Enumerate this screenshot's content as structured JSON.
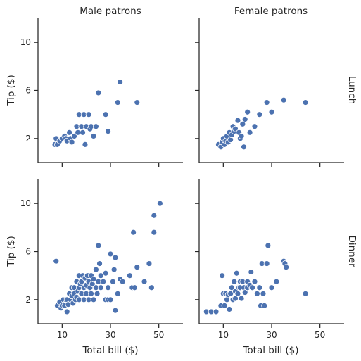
{
  "chart_data": {
    "type": "scatter",
    "xlabel": "Total bill ($)",
    "ylabel": "Tip ($)",
    "xlim": [
      0,
      60
    ],
    "ylim": [
      0,
      12
    ],
    "xticks": [
      10,
      30,
      50
    ],
    "yticks": [
      2,
      6,
      10
    ],
    "col_titles": [
      "Male patrons",
      "Female patrons"
    ],
    "row_titles": [
      "Lunch",
      "Dinner"
    ],
    "point_color": "#4c72b0",
    "grid": false,
    "facets": [
      {
        "row": "Lunch",
        "col": "Male patrons",
        "points": [
          [
            7,
            1.5
          ],
          [
            7.5,
            2
          ],
          [
            8,
            1.5
          ],
          [
            9,
            1.8
          ],
          [
            10,
            2
          ],
          [
            11,
            2.2
          ],
          [
            11.5,
            2
          ],
          [
            12,
            1.8
          ],
          [
            13,
            2.5
          ],
          [
            13.5,
            2
          ],
          [
            14,
            1.7
          ],
          [
            15,
            2.2
          ],
          [
            16,
            3
          ],
          [
            16.5,
            2.5
          ],
          [
            17,
            4
          ],
          [
            18,
            3
          ],
          [
            18.5,
            2.5
          ],
          [
            19,
            4
          ],
          [
            19.5,
            1.5
          ],
          [
            20,
            3
          ],
          [
            21,
            4
          ],
          [
            21.5,
            2.8
          ],
          [
            22,
            3
          ],
          [
            23,
            2.2
          ],
          [
            24,
            3
          ],
          [
            25,
            5.8
          ],
          [
            28,
            4
          ],
          [
            29,
            2.6
          ],
          [
            33,
            5
          ],
          [
            34,
            6.7
          ],
          [
            41,
            5
          ]
        ]
      },
      {
        "row": "Lunch",
        "col": "Female patrons",
        "points": [
          [
            8,
            1.5
          ],
          [
            9,
            1.3
          ],
          [
            9.5,
            1.7
          ],
          [
            10,
            2
          ],
          [
            10.5,
            1.5
          ],
          [
            11,
            1.8
          ],
          [
            11.5,
            2.2
          ],
          [
            12,
            1.7
          ],
          [
            12.5,
            2.5
          ],
          [
            13,
            1.9
          ],
          [
            13.5,
            2.3
          ],
          [
            14,
            3
          ],
          [
            14.5,
            2.6
          ],
          [
            15,
            2.8
          ],
          [
            16,
            3.5
          ],
          [
            16.5,
            2.5
          ],
          [
            17,
            2
          ],
          [
            17.5,
            2.2
          ],
          [
            18,
            3.2
          ],
          [
            18.5,
            1.3
          ],
          [
            19,
            3.6
          ],
          [
            20,
            4.2
          ],
          [
            21,
            2.5
          ],
          [
            23,
            3
          ],
          [
            25,
            4
          ],
          [
            28,
            5
          ],
          [
            30,
            4.2
          ],
          [
            35,
            5.2
          ],
          [
            44,
            5
          ]
        ]
      },
      {
        "row": "Dinner",
        "col": "Male patrons",
        "points": [
          [
            7.5,
            5.2
          ],
          [
            8,
            1.5
          ],
          [
            9,
            1.8
          ],
          [
            9.5,
            1.3
          ],
          [
            10,
            1.5
          ],
          [
            10.5,
            2
          ],
          [
            11,
            1.5
          ],
          [
            11.5,
            2
          ],
          [
            12,
            1
          ],
          [
            12,
            2
          ],
          [
            12.5,
            1.6
          ],
          [
            13,
            2.5
          ],
          [
            13.5,
            2
          ],
          [
            14,
            2.3
          ],
          [
            14,
            3
          ],
          [
            14.5,
            1.7
          ],
          [
            15,
            2.5
          ],
          [
            15,
            3
          ],
          [
            15.5,
            2
          ],
          [
            16,
            2.2
          ],
          [
            16,
            3.5
          ],
          [
            16.5,
            2.7
          ],
          [
            17,
            2
          ],
          [
            17,
            3
          ],
          [
            17,
            4
          ],
          [
            17.5,
            3.3
          ],
          [
            18,
            2.5
          ],
          [
            18,
            3.5
          ],
          [
            18.5,
            4
          ],
          [
            19,
            2
          ],
          [
            19,
            3
          ],
          [
            19.5,
            3.8
          ],
          [
            20,
            2.5
          ],
          [
            20,
            3.2
          ],
          [
            20.5,
            4
          ],
          [
            21,
            2
          ],
          [
            21,
            3.5
          ],
          [
            21.5,
            3
          ],
          [
            22,
            2.5
          ],
          [
            22,
            4
          ],
          [
            22.5,
            3.3
          ],
          [
            23,
            3.7
          ],
          [
            23,
            2
          ],
          [
            24,
            3
          ],
          [
            24,
            4.5
          ],
          [
            24.5,
            2.5
          ],
          [
            25,
            3.5
          ],
          [
            25,
            6.5
          ],
          [
            25.5,
            5
          ],
          [
            26,
            3
          ],
          [
            26,
            4
          ],
          [
            27,
            3.5
          ],
          [
            28,
            2
          ],
          [
            28,
            4.2
          ],
          [
            29,
            2
          ],
          [
            29,
            3
          ],
          [
            30,
            5.8
          ],
          [
            30,
            2
          ],
          [
            31,
            3.5
          ],
          [
            31.5,
            4.5
          ],
          [
            32,
            1.1
          ],
          [
            32,
            5.5
          ],
          [
            33,
            2.5
          ],
          [
            34,
            3.7
          ],
          [
            35,
            3.5
          ],
          [
            38,
            4
          ],
          [
            39,
            3
          ],
          [
            39.5,
            7.6
          ],
          [
            40,
            3
          ],
          [
            41,
            4.7
          ],
          [
            44,
            3.5
          ],
          [
            46,
            5
          ],
          [
            47,
            3
          ],
          [
            48,
            7.6
          ],
          [
            48,
            9
          ],
          [
            50.5,
            10
          ]
        ]
      },
      {
        "row": "Dinner",
        "col": "Female patrons",
        "points": [
          [
            3,
            1
          ],
          [
            5,
            1
          ],
          [
            7,
            1
          ],
          [
            9,
            1.5
          ],
          [
            9.5,
            4
          ],
          [
            10,
            2.5
          ],
          [
            10.5,
            1.5
          ],
          [
            11,
            2.5
          ],
          [
            11.5,
            2
          ],
          [
            12,
            2.4
          ],
          [
            12.5,
            1.2
          ],
          [
            13,
            2.5
          ],
          [
            13.5,
            3
          ],
          [
            14,
            2
          ],
          [
            14.5,
            3.5
          ],
          [
            15,
            2.7
          ],
          [
            15,
            2.1
          ],
          [
            15.5,
            4.2
          ],
          [
            16,
            2.5
          ],
          [
            16.5,
            3
          ],
          [
            17,
            3
          ],
          [
            17,
            3.5
          ],
          [
            17.5,
            2.1
          ],
          [
            18,
            3.5
          ],
          [
            18.5,
            3
          ],
          [
            19,
            2.6
          ],
          [
            20,
            3
          ],
          [
            20,
            3.5
          ],
          [
            21,
            3.2
          ],
          [
            21.5,
            4.3
          ],
          [
            22,
            3
          ],
          [
            23,
            3.5
          ],
          [
            24,
            2.5
          ],
          [
            25,
            3
          ],
          [
            25.5,
            1.5
          ],
          [
            26,
            5
          ],
          [
            26.5,
            2.5
          ],
          [
            27,
            1.5
          ],
          [
            28,
            5
          ],
          [
            28.5,
            6.5
          ],
          [
            30,
            3
          ],
          [
            32,
            3.5
          ],
          [
            35,
            5.2
          ],
          [
            35.5,
            5
          ],
          [
            36,
            4.7
          ],
          [
            44,
            2.5
          ]
        ]
      }
    ]
  }
}
